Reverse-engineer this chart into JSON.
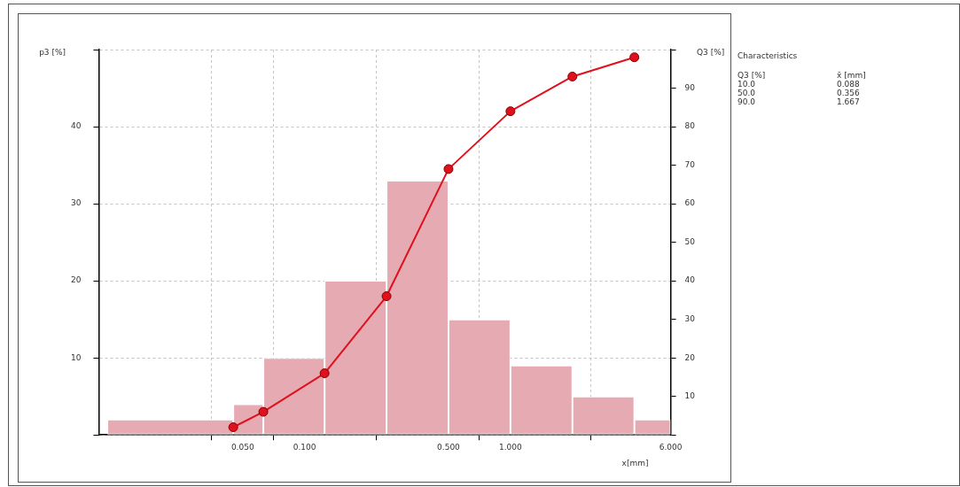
{
  "chart_data": [
    {
      "type": "histogram",
      "ylabel": "p3 [%]",
      "y2label": "Q3 [%]",
      "xlabel": "x[mm]",
      "log": "x",
      "grid": true,
      "marker": "circle",
      "line_style": "solid",
      "color": "#e6aab3",
      "bins": [
        0.011,
        0.045,
        0.063,
        0.125,
        0.25,
        0.5,
        1,
        2,
        4,
        6
      ],
      "values": [
        2,
        4,
        10,
        20,
        33,
        15,
        9,
        5,
        2
      ],
      "series": [
        {
          "type": "line",
          "axis": "y2",
          "color": "#e0101c",
          "x": [
            0.045,
            0.063,
            0.125,
            0.25,
            0.5,
            1,
            2,
            4
          ],
          "values": [
            2,
            6,
            16,
            36,
            69,
            84,
            93,
            98
          ]
        }
      ],
      "xlim": [
        0.01,
        6
      ],
      "xticks": [
        {
          "value": 0.05,
          "label": "0.050"
        },
        {
          "value": 0.1,
          "label": "0.100"
        },
        {
          "value": 0.5,
          "label": "0.500"
        },
        {
          "value": 1,
          "label": "1.000"
        },
        {
          "value": 6,
          "label": "6.000"
        }
      ],
      "ylim": [
        0,
        50
      ],
      "yticks": [
        {
          "value": 0,
          "label": null
        },
        10,
        20,
        30,
        40,
        {
          "value": 50,
          "label": null
        }
      ],
      "y2lim": [
        0,
        100
      ],
      "y2ticks": [
        {
          "value": 0,
          "label": null
        },
        10,
        20,
        30,
        40,
        50,
        60,
        70,
        80,
        90,
        {
          "value": 100,
          "label": null
        }
      ]
    },
    {
      "type": "other",
      "title": "Characteristics",
      "annotations": [
        "Q3 [%]",
        "x̄ [mm]",
        "10.0",
        "0.088",
        "50.0",
        "0.356",
        "90.0",
        "1.667"
      ]
    }
  ]
}
